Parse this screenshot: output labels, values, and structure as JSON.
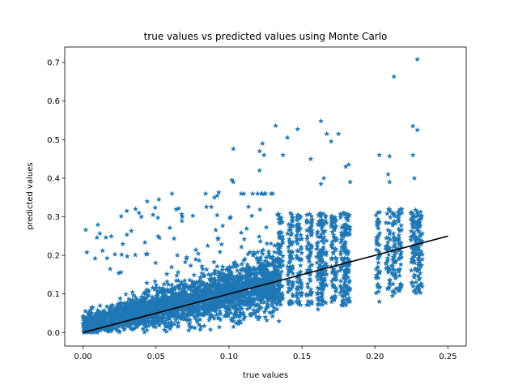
{
  "chart_data": {
    "type": "scatter",
    "title": "true values vs predicted values using Monte Carlo",
    "xlabel": "true values",
    "ylabel": "predicted values",
    "xlim": [
      -0.0125,
      0.2625
    ],
    "ylim": [
      -0.035,
      0.74
    ],
    "xticks": [
      0.0,
      0.05,
      0.1,
      0.15,
      0.2,
      0.25
    ],
    "xtick_labels": [
      "0.00",
      "0.05",
      "0.10",
      "0.15",
      "0.20",
      "0.25"
    ],
    "yticks": [
      0.0,
      0.1,
      0.2,
      0.3,
      0.4,
      0.5,
      0.6,
      0.7
    ],
    "ytick_labels": [
      "0.0",
      "0.1",
      "0.2",
      "0.3",
      "0.4",
      "0.5",
      "0.6",
      "0.7"
    ],
    "grid": false,
    "legend": "none",
    "marker": "star",
    "colors": {
      "points": "#1f77b4",
      "line": "#000000"
    },
    "reference_line": {
      "x": [
        0.0,
        0.25
      ],
      "y": [
        0.0,
        0.25
      ]
    },
    "series": [
      {
        "values_note": "dense cloud of ~thousands of points, representative sample listed",
        "points": [
          [
            0.213,
            0.663
          ],
          [
            0.229,
            0.708
          ],
          [
            0.163,
            0.548
          ],
          [
            0.132,
            0.536
          ],
          [
            0.147,
            0.527
          ],
          [
            0.226,
            0.535
          ],
          [
            0.229,
            0.525
          ],
          [
            0.167,
            0.515
          ],
          [
            0.175,
            0.515
          ],
          [
            0.14,
            0.505
          ],
          [
            0.17,
            0.495
          ],
          [
            0.123,
            0.49
          ],
          [
            0.121,
            0.47
          ],
          [
            0.124,
            0.46
          ],
          [
            0.103,
            0.476
          ],
          [
            0.226,
            0.46
          ],
          [
            0.21,
            0.457
          ],
          [
            0.203,
            0.46
          ],
          [
            0.182,
            0.435
          ],
          [
            0.18,
            0.43
          ],
          [
            0.156,
            0.45
          ],
          [
            0.137,
            0.46
          ],
          [
            0.121,
            0.42
          ],
          [
            0.102,
            0.395
          ],
          [
            0.103,
            0.39
          ],
          [
            0.165,
            0.4
          ],
          [
            0.183,
            0.39
          ],
          [
            0.227,
            0.4
          ],
          [
            0.209,
            0.41
          ],
          [
            0.21,
            0.39
          ],
          [
            0.163,
            0.385
          ],
          [
            0.13,
            0.36
          ],
          [
            0.061,
            0.36
          ],
          [
            0.052,
            0.345
          ],
          [
            0.044,
            0.34
          ],
          [
            0.093,
            0.363
          ],
          [
            0.084,
            0.36
          ],
          [
            0.09,
            0.35
          ],
          [
            0.03,
            0.315
          ],
          [
            0.036,
            0.32
          ],
          [
            0.048,
            0.305
          ],
          [
            0.04,
            0.3
          ],
          [
            0.068,
            0.3
          ],
          [
            0.226,
            0.12
          ],
          [
            0.203,
            0.08
          ],
          [
            0.212,
            0.095
          ],
          [
            0.135,
            0.09
          ],
          [
            0.161,
            0.06
          ],
          [
            0.23,
            0.22
          ]
        ]
      }
    ]
  }
}
